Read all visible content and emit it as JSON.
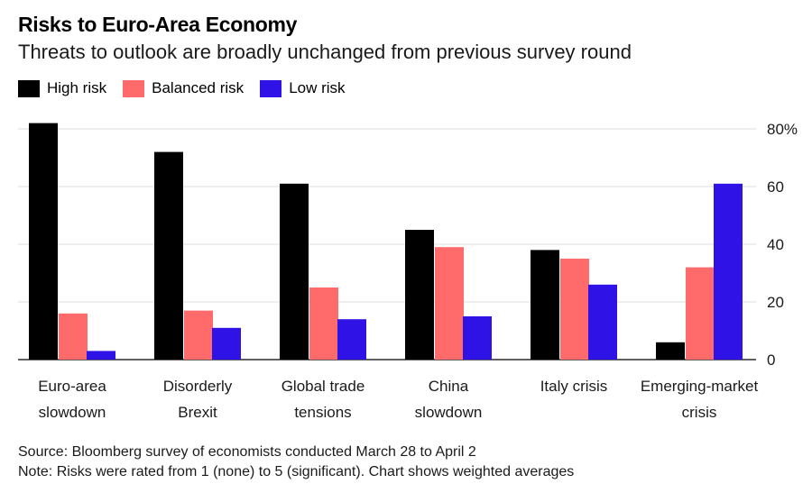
{
  "header": {
    "title": "Risks to Euro-Area Economy",
    "subtitle": "Threats to outlook are broadly unchanged from previous survey round"
  },
  "colors": {
    "high": "#000000",
    "balanced": "#ff6b6b",
    "low": "#2f12e6",
    "grid": "#dddddd"
  },
  "chart_data": {
    "type": "bar",
    "title": "Risks to Euro-Area Economy",
    "categories": [
      [
        "Euro-area",
        "slowdown"
      ],
      [
        "Disorderly",
        "Brexit"
      ],
      [
        "Global trade",
        "tensions"
      ],
      [
        "China",
        "slowdown"
      ],
      [
        "Italy crisis"
      ],
      [
        "Emerging-market",
        "crisis"
      ]
    ],
    "series": [
      {
        "name": "High risk",
        "color": "#000000",
        "values": [
          82,
          72,
          61,
          45,
          38,
          6
        ]
      },
      {
        "name": "Balanced risk",
        "color": "#ff6b6b",
        "values": [
          16,
          17,
          25,
          39,
          35,
          32
        ]
      },
      {
        "name": "Low risk",
        "color": "#2f12e6",
        "values": [
          3,
          11,
          14,
          15,
          26,
          61
        ]
      }
    ],
    "ylim": [
      0,
      80
    ],
    "yticks": [
      0,
      20,
      40,
      60,
      80
    ],
    "ytick_labels": [
      "0",
      "20",
      "40",
      "60",
      "80%"
    ],
    "ylabel": "",
    "xlabel": "",
    "grid": true,
    "legend": "top-left"
  },
  "footer": {
    "source": "Source: Bloomberg survey of economists conducted March 28 to April 2",
    "note": "Note: Risks were rated from 1 (none) to 5 (significant). Chart shows weighted averages"
  }
}
